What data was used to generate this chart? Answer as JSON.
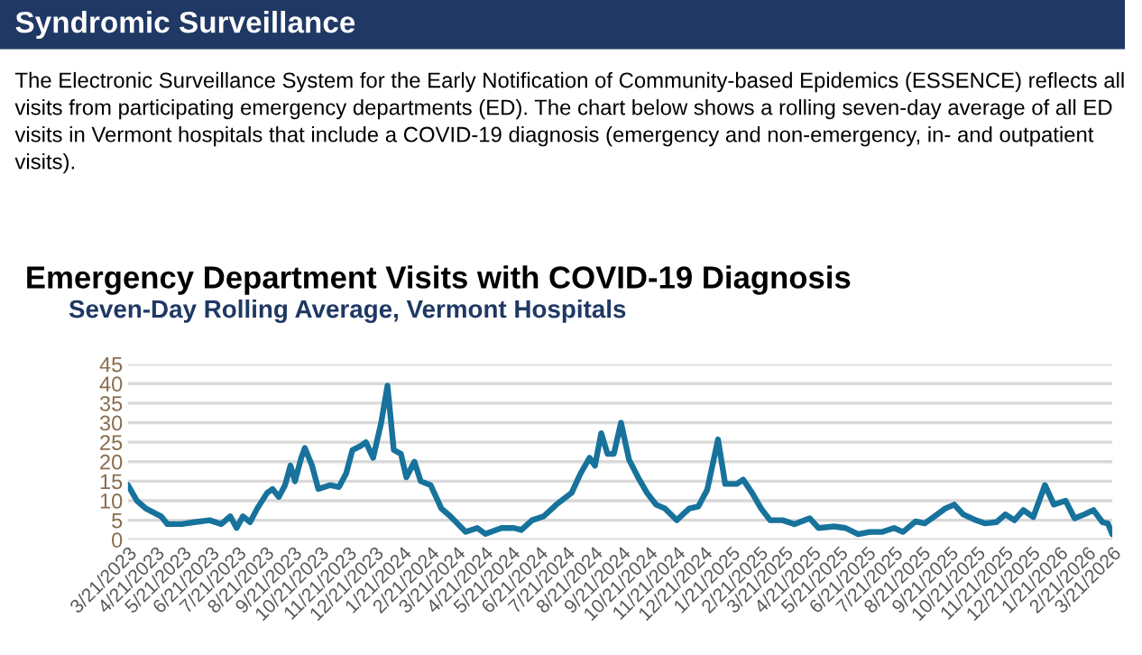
{
  "chart_data": {
    "type": "line",
    "title": "Emergency Department Visits with COVID-19 Diagnosis",
    "subtitle": "Seven-Day Rolling Average, Vermont Hospitals",
    "annotations": [
      "Syndromic Surveillance",
      "The Electronic Surveillance System for the Early Notification of Community-based Epidemics (ESSENCE) reflects all visits from participating emergency departments (ED). The chart below shows a rolling seven-day average of all ED visits in Vermont hospitals that include a COVID-19 diagnosis (emergency and non-emergency, in- and outpatient visits)."
    ],
    "series": [
      {
        "color": "#17729c",
        "x": [
          "2023-03-21",
          "2023-03-31",
          "2023-04-10",
          "2023-04-27",
          "2023-05-04",
          "2023-05-20",
          "2023-06-03",
          "2023-06-20",
          "2023-07-03",
          "2023-07-13",
          "2023-07-20",
          "2023-07-27",
          "2023-08-04",
          "2023-08-12",
          "2023-08-23",
          "2023-08-29",
          "2023-09-05",
          "2023-09-12",
          "2023-09-18",
          "2023-09-23",
          "2023-09-30",
          "2023-10-04",
          "2023-10-12",
          "2023-10-19",
          "2023-11-01",
          "2023-11-11",
          "2023-11-19",
          "2023-11-26",
          "2023-12-05",
          "2023-12-11",
          "2023-12-19",
          "2023-12-28",
          "2024-01-04",
          "2024-01-11",
          "2024-01-19",
          "2024-01-25",
          "2024-02-03",
          "2024-02-10",
          "2024-02-21",
          "2024-03-04",
          "2024-03-14",
          "2024-03-31",
          "2024-04-13",
          "2024-04-22",
          "2024-05-10",
          "2024-05-24",
          "2024-06-01",
          "2024-06-13",
          "2024-06-26",
          "2024-07-10",
          "2024-07-27",
          "2024-08-06",
          "2024-08-16",
          "2024-08-22",
          "2024-08-29",
          "2024-09-05",
          "2024-09-12",
          "2024-09-20",
          "2024-09-29",
          "2024-10-09",
          "2024-10-19",
          "2024-10-29",
          "2024-11-08",
          "2024-11-21",
          "2024-12-05",
          "2024-12-15",
          "2024-12-25",
          "2025-01-06",
          "2025-01-14",
          "2025-01-27",
          "2025-02-03",
          "2025-02-13",
          "2025-02-23",
          "2025-03-05",
          "2025-03-19",
          "2025-04-01",
          "2025-04-18",
          "2025-04-28",
          "2025-05-15",
          "2025-05-28",
          "2025-06-11",
          "2025-06-24",
          "2025-07-08",
          "2025-07-21",
          "2025-07-31",
          "2025-08-14",
          "2025-08-24",
          "2025-09-03",
          "2025-09-16",
          "2025-09-26",
          "2025-10-06",
          "2025-10-20",
          "2025-10-30",
          "2025-11-12",
          "2025-11-22",
          "2025-12-02",
          "2025-12-12",
          "2025-12-23",
          "2026-01-05",
          "2026-01-15",
          "2026-01-28",
          "2026-02-07",
          "2026-02-18",
          "2026-02-28",
          "2026-03-10",
          "2026-03-16",
          "2026-03-21"
        ],
        "values": [
          14,
          10,
          8,
          6,
          4,
          4,
          4.5,
          5,
          4,
          6,
          3,
          6,
          4.5,
          8,
          12,
          13,
          11,
          14,
          19,
          15,
          21,
          23.5,
          19,
          13,
          14,
          13.5,
          17,
          23,
          24,
          25,
          21,
          30,
          39.5,
          23,
          22,
          16,
          20,
          15,
          14,
          8,
          6,
          2,
          3,
          1.5,
          3,
          3,
          2.5,
          5,
          6,
          9,
          12,
          17,
          21,
          19,
          27.3,
          22,
          22,
          30,
          20.5,
          16,
          12,
          9,
          8,
          5,
          8,
          8.5,
          12.8,
          25.7,
          14.3,
          14.3,
          15.4,
          12,
          8,
          5,
          5,
          4,
          5.5,
          3,
          3.4,
          3,
          1.4,
          2,
          2,
          3,
          2,
          4.7,
          4.2,
          5.8,
          8,
          9,
          6.5,
          5,
          4.2,
          4.5,
          6.5,
          5,
          7.6,
          5.8,
          14,
          9,
          10,
          5.5,
          6.5,
          7.6,
          4.5,
          4.2,
          1.4
        ]
      }
    ],
    "xlim": [
      "2023-03-21",
      "2026-03-21"
    ],
    "xticks": [
      {
        "value": "2023-03-21",
        "label": "3/21/2023"
      },
      {
        "value": "2023-04-21",
        "label": "4/21/2023"
      },
      {
        "value": "2023-05-21",
        "label": "5/21/2023"
      },
      {
        "value": "2023-06-21",
        "label": "6/21/2023"
      },
      {
        "value": "2023-07-21",
        "label": "7/21/2023"
      },
      {
        "value": "2023-08-21",
        "label": "8/21/2023"
      },
      {
        "value": "2023-09-21",
        "label": "9/21/2023"
      },
      {
        "value": "2023-10-21",
        "label": "10/21/2023"
      },
      {
        "value": "2023-11-21",
        "label": "11/21/2023"
      },
      {
        "value": "2023-12-21",
        "label": "12/21/2023"
      },
      {
        "value": "2024-01-21",
        "label": "1/21/2024"
      },
      {
        "value": "2024-02-21",
        "label": "2/21/2024"
      },
      {
        "value": "2024-03-21",
        "label": "3/21/2024"
      },
      {
        "value": "2024-04-21",
        "label": "4/21/2024"
      },
      {
        "value": "2024-05-21",
        "label": "5/21/2024"
      },
      {
        "value": "2024-06-21",
        "label": "6/21/2024"
      },
      {
        "value": "2024-07-21",
        "label": "7/21/2024"
      },
      {
        "value": "2024-08-21",
        "label": "8/21/2024"
      },
      {
        "value": "2024-09-21",
        "label": "9/21/2024"
      },
      {
        "value": "2024-10-21",
        "label": "10/21/2024"
      },
      {
        "value": "2024-11-21",
        "label": "11/21/2024"
      },
      {
        "value": "2024-12-21",
        "label": "12/21/2024"
      },
      {
        "value": "2025-01-21",
        "label": "1/21/2025"
      },
      {
        "value": "2025-02-21",
        "label": "2/21/2025"
      },
      {
        "value": "2025-03-21",
        "label": "3/21/2025"
      },
      {
        "value": "2025-04-21",
        "label": "4/21/2025"
      },
      {
        "value": "2025-05-21",
        "label": "5/21/2025"
      },
      {
        "value": "2025-06-21",
        "label": "6/21/2025"
      },
      {
        "value": "2025-07-21",
        "label": "7/21/2025"
      },
      {
        "value": "2025-08-21",
        "label": "8/21/2025"
      },
      {
        "value": "2025-09-21",
        "label": "9/21/2025"
      },
      {
        "value": "2025-10-21",
        "label": "10/21/2025"
      },
      {
        "value": "2025-11-21",
        "label": "11/21/2025"
      },
      {
        "value": "2025-12-21",
        "label": "12/21/2025"
      },
      {
        "value": "2026-01-21",
        "label": "1/21/2026"
      },
      {
        "value": "2026-02-21",
        "label": "2/21/2026"
      },
      {
        "value": "2026-03-21",
        "label": "3/21/2026"
      }
    ],
    "ylim": [
      0,
      45
    ],
    "yticks": [
      0,
      5,
      10,
      15,
      20,
      25,
      30,
      35,
      40,
      45
    ],
    "grid": "y",
    "marker": "none",
    "line_style": "solid"
  }
}
